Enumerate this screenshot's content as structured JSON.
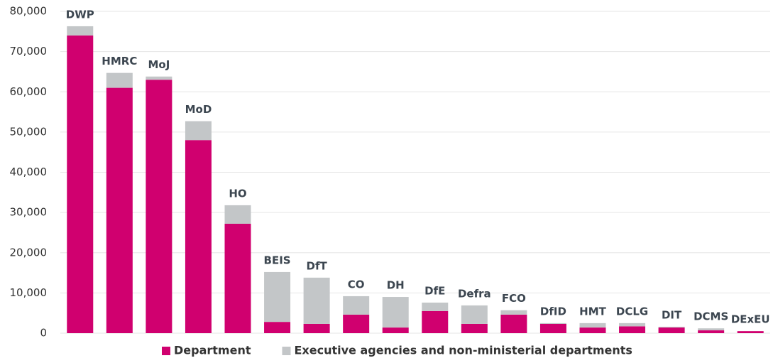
{
  "chart_data": {
    "type": "bar",
    "stacked": true,
    "categories": [
      "DWP",
      "HMRC",
      "MoJ",
      "MoD",
      "HO",
      "BEIS",
      "DfT",
      "CO",
      "DH",
      "DfE",
      "Defra",
      "FCO",
      "DfID",
      "HMT",
      "DCLG",
      "DIT",
      "DCMS",
      "DExEU"
    ],
    "series": [
      {
        "name": "Department",
        "color": "#d0006f",
        "values": [
          74000,
          61000,
          63000,
          48000,
          27200,
          2800,
          2300,
          4600,
          1400,
          5500,
          2300,
          4600,
          2300,
          1400,
          1700,
          1400,
          700,
          500
        ]
      },
      {
        "name": "Executive agencies and non-ministerial departments",
        "color": "#c3c6c8",
        "values": [
          2300,
          3700,
          800,
          4700,
          4600,
          12400,
          11500,
          4600,
          7600,
          2100,
          4600,
          1100,
          200,
          1100,
          800,
          200,
          500,
          0
        ]
      }
    ],
    "ylim": [
      0,
      80000
    ],
    "yticks": [
      0,
      {
        "value": 10000,
        "label": "10,000"
      },
      {
        "value": 20000,
        "label": "20,000"
      },
      {
        "value": 30000,
        "label": "30,000"
      },
      {
        "value": 40000,
        "label": "40,000"
      },
      {
        "value": 50000,
        "label": "50,000"
      },
      {
        "value": 60000,
        "label": "60,000"
      },
      {
        "value": 70000,
        "label": "70,000"
      },
      {
        "value": 80000,
        "label": "80,000"
      }
    ],
    "grid": true,
    "legend": "bottom"
  }
}
